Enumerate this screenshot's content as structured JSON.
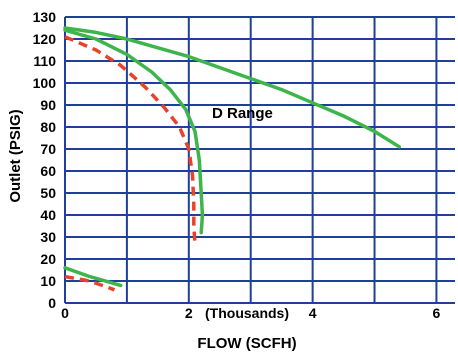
{
  "chart_data": {
    "type": "line",
    "xlabel": "FLOW (SCFH)",
    "ylabel": "Outlet (PSIG)",
    "x_unit_label": "(Thousands)",
    "annotation": "D Range",
    "xlim": [
      0,
      6.3
    ],
    "ylim": [
      0,
      130
    ],
    "x_ticks": [
      0,
      2,
      4,
      6
    ],
    "y_ticks": [
      0,
      10,
      20,
      30,
      40,
      50,
      60,
      70,
      80,
      90,
      100,
      110,
      120,
      130
    ],
    "x_grid_step": 1,
    "y_grid_step": 10,
    "grid": true,
    "colors": {
      "grid": "#1f3f9b",
      "green": "#3db54a",
      "red": "#e8432a"
    },
    "series": [
      {
        "color": "green",
        "dash": false,
        "points": [
          [
            0,
            125
          ],
          [
            0.5,
            123
          ],
          [
            1,
            120
          ],
          [
            1.5,
            116
          ],
          [
            2,
            112
          ],
          [
            2.5,
            107
          ],
          [
            3,
            102
          ],
          [
            3.5,
            97
          ],
          [
            4,
            91
          ],
          [
            4.5,
            85
          ],
          [
            5,
            78
          ],
          [
            5.4,
            71
          ]
        ]
      },
      {
        "color": "green",
        "dash": false,
        "points": [
          [
            0,
            124
          ],
          [
            0.5,
            120
          ],
          [
            1,
            113
          ],
          [
            1.4,
            105
          ],
          [
            1.7,
            97
          ],
          [
            1.95,
            88
          ],
          [
            2.1,
            78
          ],
          [
            2.17,
            65
          ],
          [
            2.2,
            50
          ],
          [
            2.22,
            40
          ],
          [
            2.2,
            32
          ]
        ]
      },
      {
        "color": "red",
        "dash": true,
        "points": [
          [
            0,
            121
          ],
          [
            0.5,
            115
          ],
          [
            0.9,
            108
          ],
          [
            1.3,
            98
          ],
          [
            1.6,
            89
          ],
          [
            1.85,
            80
          ],
          [
            2.0,
            70
          ],
          [
            2.06,
            58
          ],
          [
            2.08,
            45
          ],
          [
            2.08,
            35
          ],
          [
            2.1,
            27
          ]
        ]
      },
      {
        "color": "green",
        "dash": false,
        "points": [
          [
            0,
            16
          ],
          [
            0.4,
            12
          ],
          [
            0.9,
            8
          ]
        ]
      },
      {
        "color": "red",
        "dash": true,
        "points": [
          [
            0,
            12
          ],
          [
            0.4,
            10
          ],
          [
            0.8,
            6
          ]
        ]
      }
    ]
  }
}
